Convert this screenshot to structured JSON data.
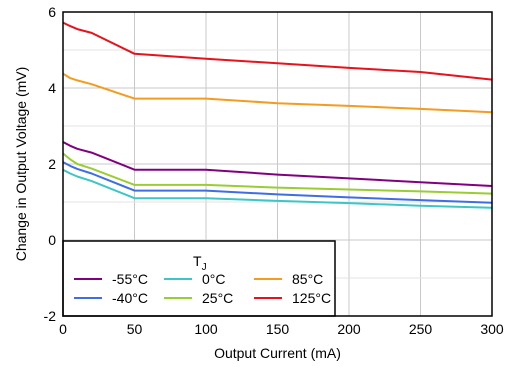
{
  "chart_data": {
    "type": "line",
    "title": "",
    "xlabel": "Output Current (mA)",
    "ylabel": "Change in Output Voltage (mV)",
    "xlim": [
      0,
      300
    ],
    "ylim": [
      -2,
      6
    ],
    "xticks": [
      0,
      50,
      100,
      150,
      200,
      250,
      300
    ],
    "yticks": [
      -2,
      0,
      2,
      4,
      6
    ],
    "grid": true,
    "legend": {
      "title_main": "T",
      "title_sub": "J",
      "placement": "bottom-left",
      "columns": 3
    },
    "series": [
      {
        "name": "-55°C",
        "color": "#800080",
        "points": [
          [
            0,
            2.58
          ],
          [
            5,
            2.48
          ],
          [
            10,
            2.4
          ],
          [
            20,
            2.3
          ],
          [
            50,
            1.85
          ],
          [
            100,
            1.85
          ],
          [
            150,
            1.72
          ],
          [
            200,
            1.62
          ],
          [
            250,
            1.52
          ],
          [
            300,
            1.42
          ]
        ]
      },
      {
        "name": "-40°C",
        "color": "#3d6ee6",
        "points": [
          [
            0,
            2.05
          ],
          [
            5,
            1.95
          ],
          [
            10,
            1.87
          ],
          [
            20,
            1.75
          ],
          [
            50,
            1.3
          ],
          [
            100,
            1.3
          ],
          [
            150,
            1.2
          ],
          [
            200,
            1.12
          ],
          [
            250,
            1.05
          ],
          [
            300,
            0.98
          ]
        ]
      },
      {
        "name": "0°C",
        "color": "#3cc6c6",
        "points": [
          [
            0,
            1.85
          ],
          [
            5,
            1.75
          ],
          [
            10,
            1.67
          ],
          [
            20,
            1.55
          ],
          [
            50,
            1.1
          ],
          [
            100,
            1.1
          ],
          [
            150,
            1.03
          ],
          [
            200,
            0.97
          ],
          [
            250,
            0.9
          ],
          [
            300,
            0.85
          ]
        ]
      },
      {
        "name": "25°C",
        "color": "#9acd32",
        "points": [
          [
            0,
            2.28
          ],
          [
            5,
            2.12
          ],
          [
            10,
            2.0
          ],
          [
            20,
            1.88
          ],
          [
            50,
            1.45
          ],
          [
            100,
            1.45
          ],
          [
            150,
            1.38
          ],
          [
            200,
            1.33
          ],
          [
            250,
            1.28
          ],
          [
            300,
            1.22
          ]
        ]
      },
      {
        "name": "85°C",
        "color": "#f39c1f",
        "points": [
          [
            0,
            4.38
          ],
          [
            5,
            4.26
          ],
          [
            10,
            4.2
          ],
          [
            20,
            4.1
          ],
          [
            50,
            3.72
          ],
          [
            100,
            3.72
          ],
          [
            150,
            3.6
          ],
          [
            200,
            3.53
          ],
          [
            250,
            3.45
          ],
          [
            300,
            3.36
          ]
        ]
      },
      {
        "name": "125°C",
        "color": "#e8121a",
        "points": [
          [
            0,
            5.72
          ],
          [
            5,
            5.63
          ],
          [
            10,
            5.55
          ],
          [
            20,
            5.45
          ],
          [
            50,
            4.9
          ],
          [
            100,
            4.77
          ],
          [
            150,
            4.65
          ],
          [
            200,
            4.53
          ],
          [
            250,
            4.42
          ],
          [
            300,
            4.22
          ]
        ]
      }
    ]
  }
}
